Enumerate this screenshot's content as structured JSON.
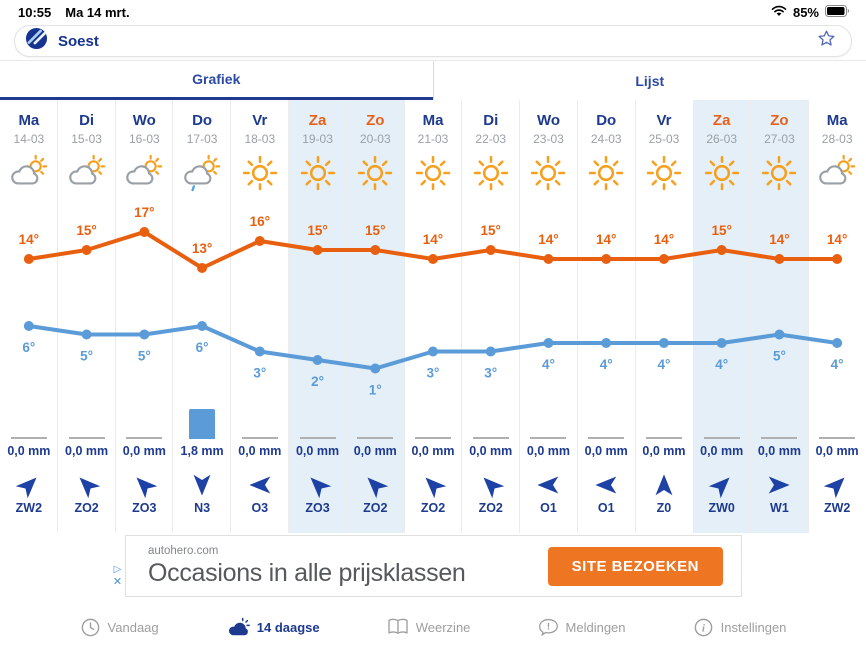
{
  "status_bar": {
    "time": "10:55",
    "date": "Ma 14 mrt.",
    "battery_percent": "85%"
  },
  "search_bar": {
    "location": "Soest"
  },
  "tabs": {
    "grafiek": "Grafiek",
    "lijst": "Lijst",
    "active": "Grafiek"
  },
  "chart_data": {
    "type": "line",
    "categories": [
      "14-03",
      "15-03",
      "16-03",
      "17-03",
      "18-03",
      "19-03",
      "20-03",
      "21-03",
      "22-03",
      "23-03",
      "24-03",
      "25-03",
      "26-03",
      "27-03",
      "28-03"
    ],
    "series": [
      {
        "name": "max_temp",
        "color": "#E8600F",
        "values": [
          14,
          15,
          17,
          13,
          16,
          15,
          15,
          14,
          15,
          14,
          14,
          14,
          15,
          14,
          14
        ]
      },
      {
        "name": "min_temp",
        "color": "#5B9BD8",
        "values": [
          6,
          5,
          5,
          6,
          3,
          2,
          1,
          3,
          3,
          4,
          4,
          4,
          4,
          5,
          4
        ]
      }
    ],
    "precipitation_mm": [
      0,
      0,
      0,
      1.8,
      0,
      0,
      0,
      0,
      0,
      0,
      0,
      0,
      0,
      0,
      0
    ],
    "unit": "°C",
    "legend": "none",
    "grid": "vertical column separators only"
  },
  "days": [
    {
      "day": "Ma",
      "date": "14-03",
      "weekend": false,
      "icon": "partly-cloudy",
      "precip": "0,0 mm",
      "precip_mm": 0,
      "wind": {
        "label": "ZW2",
        "deg": 45
      }
    },
    {
      "day": "Di",
      "date": "15-03",
      "weekend": false,
      "icon": "partly-cloudy",
      "precip": "0,0 mm",
      "precip_mm": 0,
      "wind": {
        "label": "ZO2",
        "deg": -45
      }
    },
    {
      "day": "Wo",
      "date": "16-03",
      "weekend": false,
      "icon": "partly-cloudy",
      "precip": "0,0 mm",
      "precip_mm": 0,
      "wind": {
        "label": "ZO3",
        "deg": -45
      }
    },
    {
      "day": "Do",
      "date": "17-03",
      "weekend": false,
      "icon": "partly-cloudy-rain",
      "precip": "1,8 mm",
      "precip_mm": 1.8,
      "wind": {
        "label": "N3",
        "deg": 180
      }
    },
    {
      "day": "Vr",
      "date": "18-03",
      "weekend": false,
      "icon": "sunny",
      "precip": "0,0 mm",
      "precip_mm": 0,
      "wind": {
        "label": "O3",
        "deg": -90
      }
    },
    {
      "day": "Za",
      "date": "19-03",
      "weekend": true,
      "icon": "sunny",
      "precip": "0,0 mm",
      "precip_mm": 0,
      "wind": {
        "label": "ZO3",
        "deg": -45
      }
    },
    {
      "day": "Zo",
      "date": "20-03",
      "weekend": true,
      "icon": "sunny",
      "precip": "0,0 mm",
      "precip_mm": 0,
      "wind": {
        "label": "ZO2",
        "deg": -45
      }
    },
    {
      "day": "Ma",
      "date": "21-03",
      "weekend": false,
      "icon": "sunny",
      "precip": "0,0 mm",
      "precip_mm": 0,
      "wind": {
        "label": "ZO2",
        "deg": -45
      }
    },
    {
      "day": "Di",
      "date": "22-03",
      "weekend": false,
      "icon": "sunny",
      "precip": "0,0 mm",
      "precip_mm": 0,
      "wind": {
        "label": "ZO2",
        "deg": -45
      }
    },
    {
      "day": "Wo",
      "date": "23-03",
      "weekend": false,
      "icon": "sunny",
      "precip": "0,0 mm",
      "precip_mm": 0,
      "wind": {
        "label": "O1",
        "deg": -90
      }
    },
    {
      "day": "Do",
      "date": "24-03",
      "weekend": false,
      "icon": "sunny",
      "precip": "0,0 mm",
      "precip_mm": 0,
      "wind": {
        "label": "O1",
        "deg": -90
      }
    },
    {
      "day": "Vr",
      "date": "25-03",
      "weekend": false,
      "icon": "sunny",
      "precip": "0,0 mm",
      "precip_mm": 0,
      "wind": {
        "label": "Z0",
        "deg": 0
      }
    },
    {
      "day": "Za",
      "date": "26-03",
      "weekend": true,
      "icon": "sunny",
      "precip": "0,0 mm",
      "precip_mm": 0,
      "wind": {
        "label": "ZW0",
        "deg": 45
      }
    },
    {
      "day": "Zo",
      "date": "27-03",
      "weekend": true,
      "icon": "sunny",
      "precip": "0,0 mm",
      "precip_mm": 0,
      "wind": {
        "label": "W1",
        "deg": 90
      }
    },
    {
      "day": "Ma",
      "date": "28-03",
      "weekend": false,
      "icon": "partly-cloudy",
      "precip": "0,0 mm",
      "precip_mm": 0,
      "wind": {
        "label": "ZW2",
        "deg": 45
      }
    }
  ],
  "ad": {
    "source": "autohero.com",
    "headline": "Occasions in alle prijsklassen",
    "cta": "SITE BEZOEKEN"
  },
  "bottom_nav": {
    "items": [
      {
        "label": "Vandaag",
        "icon": "clock-icon",
        "active": false
      },
      {
        "label": "14 daagse",
        "icon": "cloud-sun-icon",
        "active": true
      },
      {
        "label": "Weerzine",
        "icon": "book-icon",
        "active": false
      },
      {
        "label": "Meldingen",
        "icon": "alert-bubble-icon",
        "active": false
      },
      {
        "label": "Instellingen",
        "icon": "info-icon",
        "active": false
      }
    ]
  },
  "colors": {
    "navy_text": "#1d3a8f",
    "weekend_orange": "#e8611c",
    "max_line": "#E8600F",
    "min_line": "#5B9BD8",
    "weekend_bg": "#e4eff7",
    "ad_button": "#ee7623"
  }
}
